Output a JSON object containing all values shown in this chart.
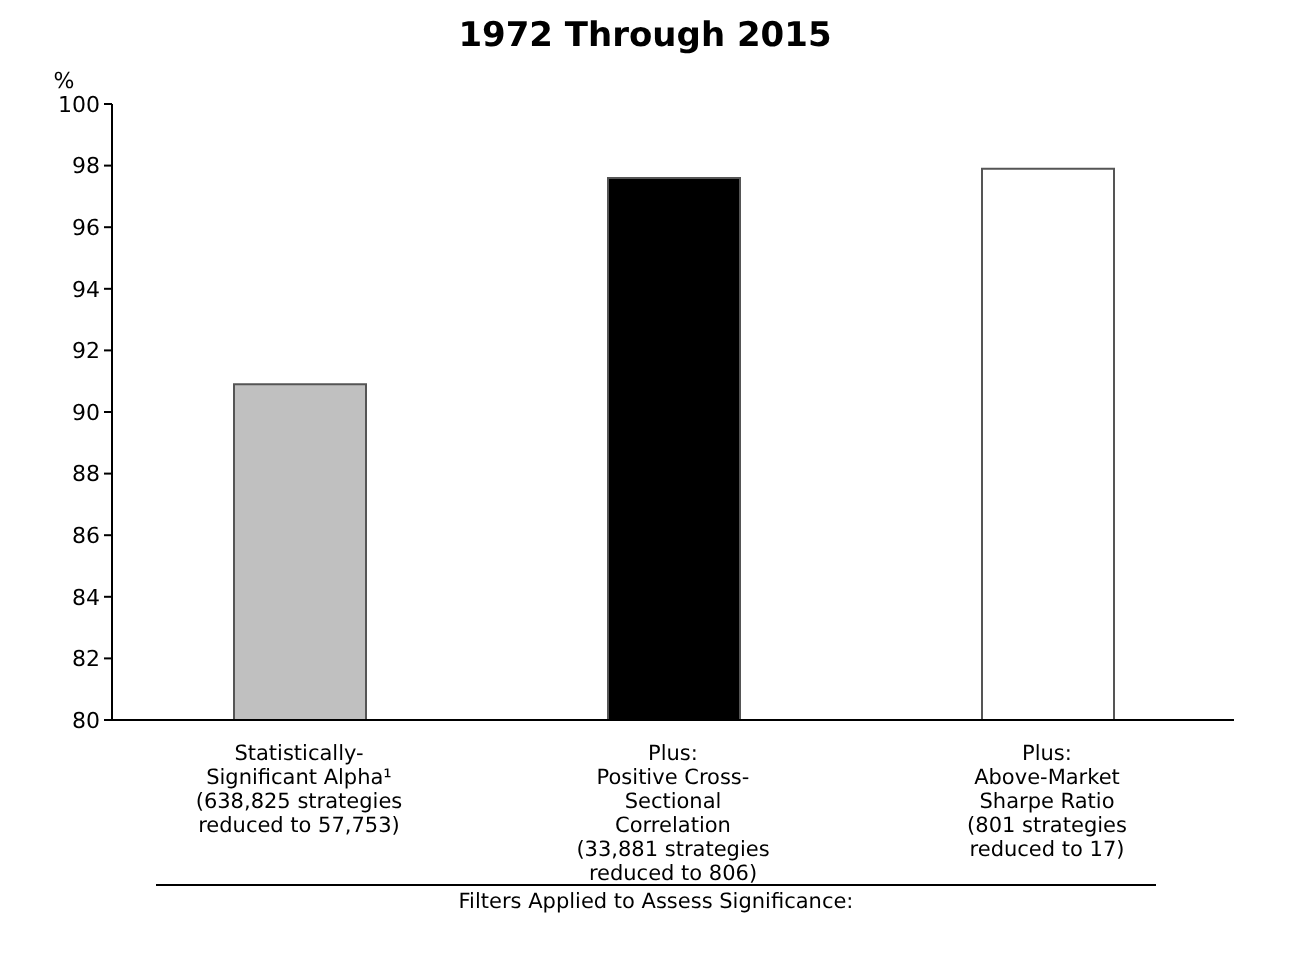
{
  "chart_data": {
    "type": "bar",
    "title": "1972 Through 2015",
    "ylabel": "%",
    "xlabel": "Filters Applied to Assess Significance:",
    "categories": [
      "Statistically-\nSignificant Alpha¹\n(638,825 strategies\nreduced to 57,753)",
      "Plus:\nPositive Cross-\nSectional\nCorrelation\n(33,881 strategies\nreduced to 806)",
      "Plus:\nAbove-Market\nSharpe Ratio\n(801 strategies\nreduced to 17)"
    ],
    "values": [
      90.9,
      97.6,
      97.9
    ],
    "colors": [
      "#c0c0c0",
      "#000000",
      "#ffffff"
    ],
    "ylim": [
      80,
      100
    ],
    "yticks": [
      80,
      82,
      84,
      86,
      88,
      90,
      92,
      94,
      96,
      98,
      100
    ],
    "grid": false,
    "legend": false
  }
}
